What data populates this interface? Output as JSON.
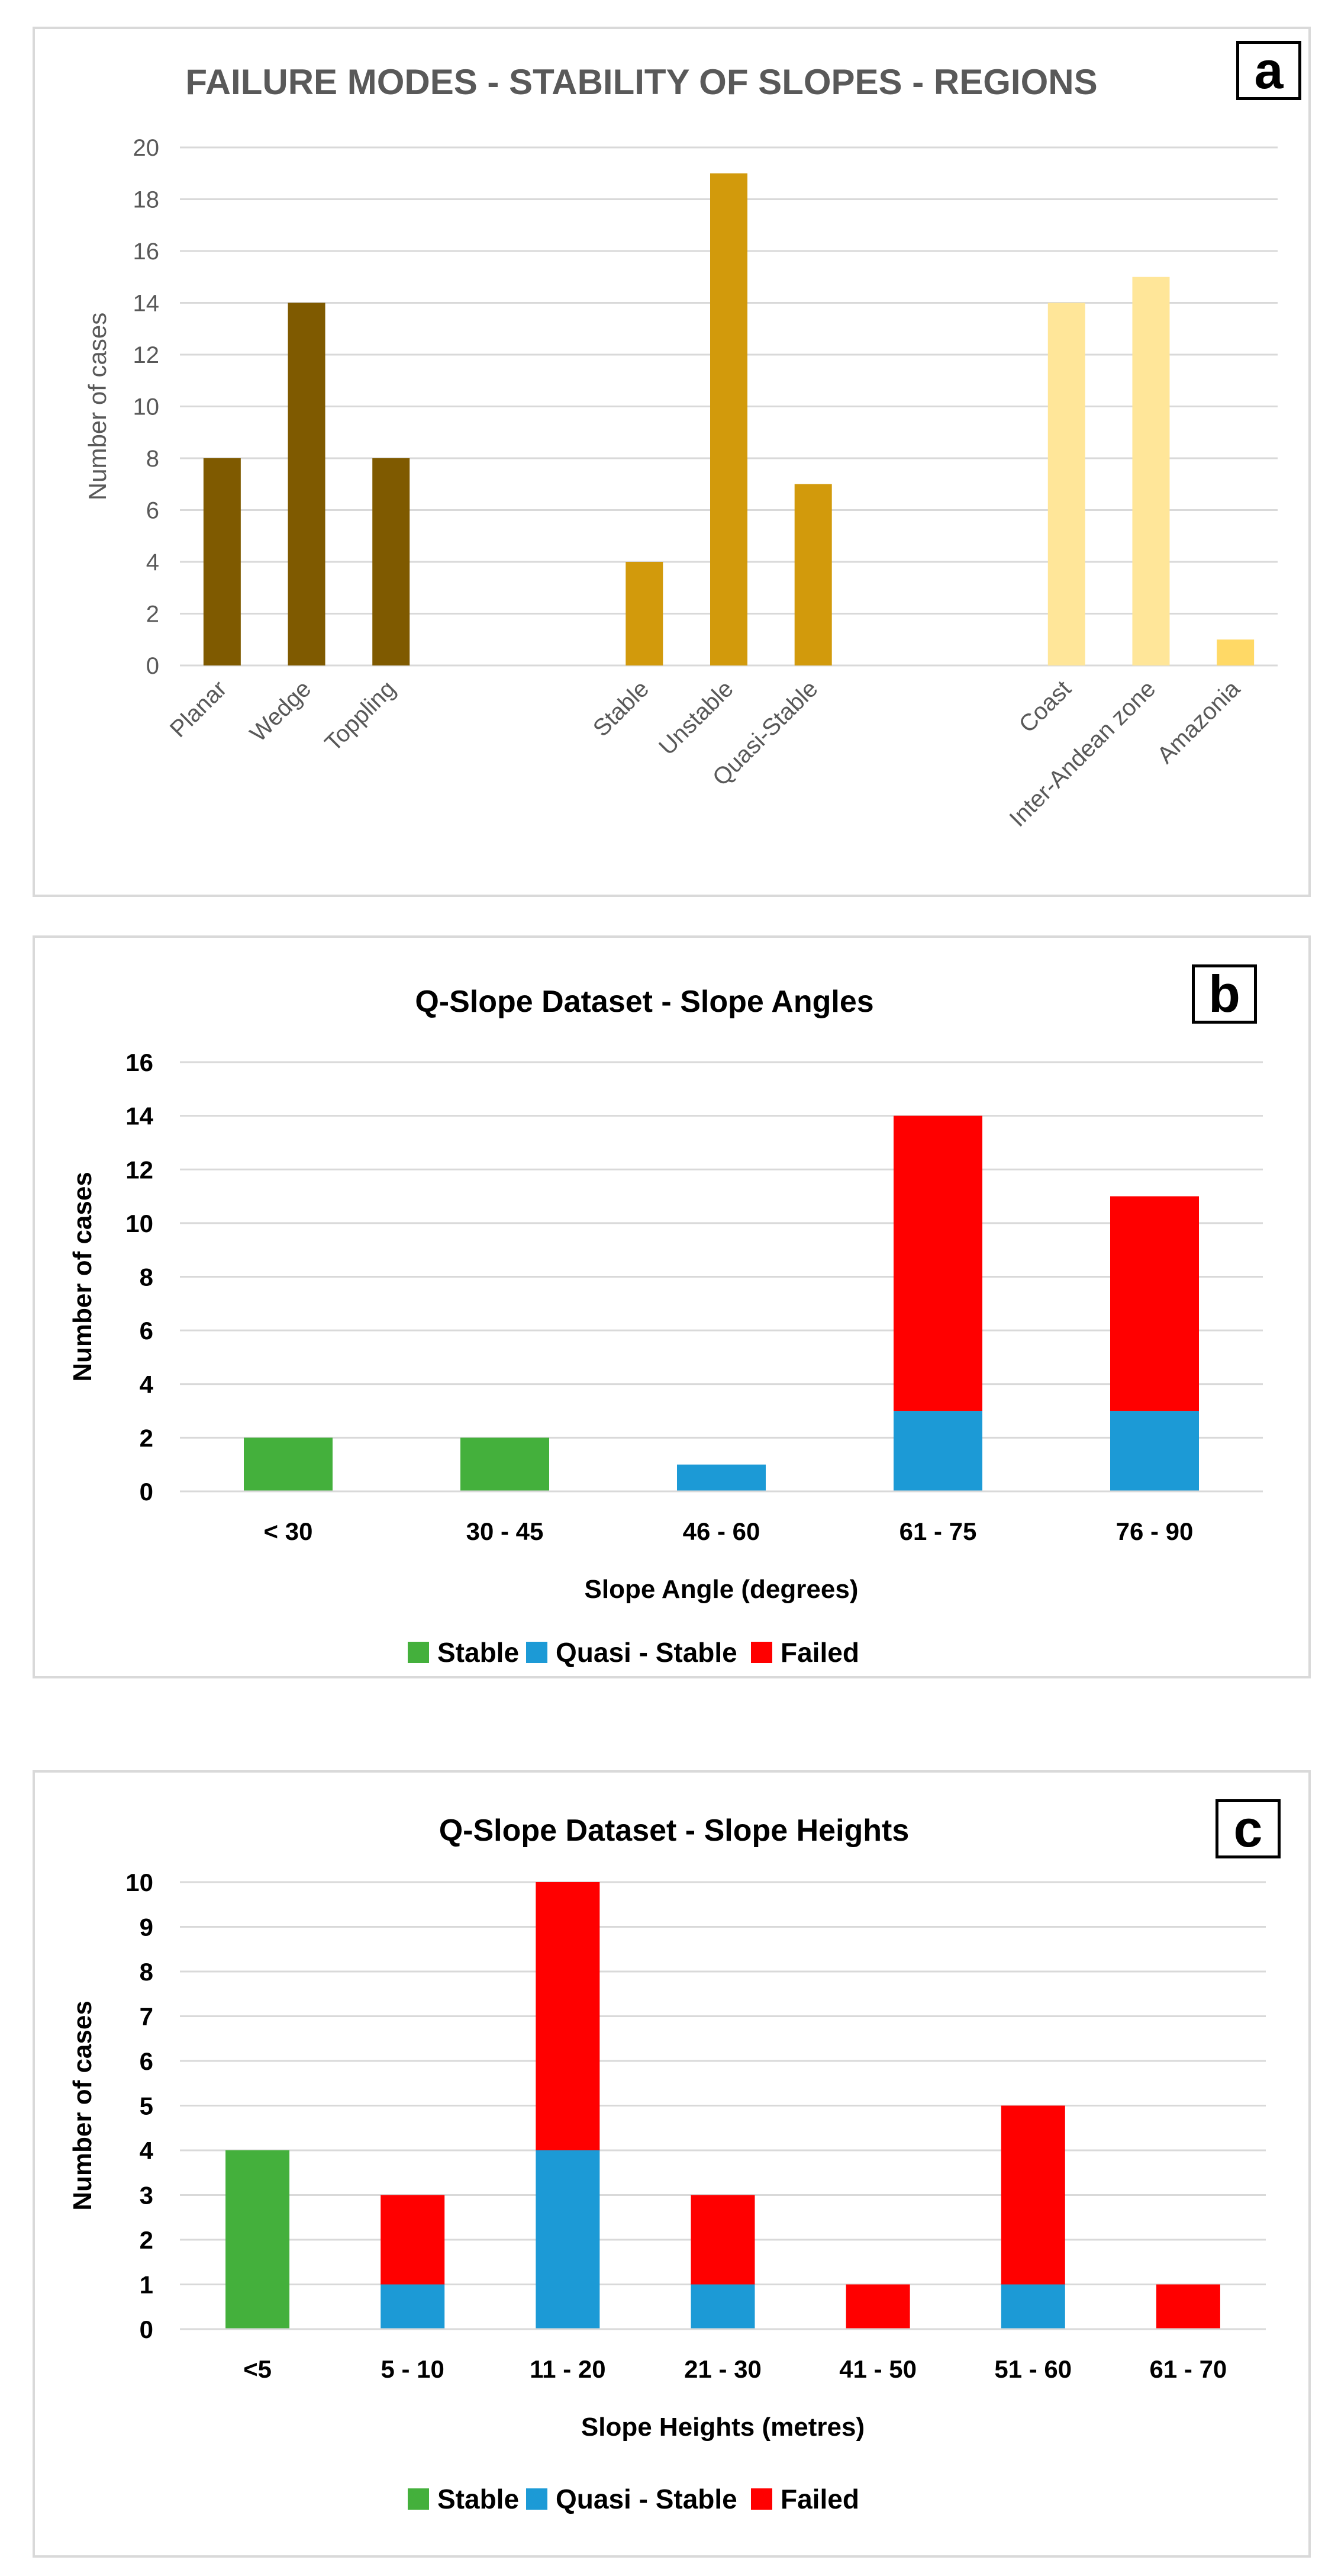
{
  "chart_data": [
    {
      "type": "bar",
      "panel_label": "a",
      "title": "FAILURE MODES - STABILITY OF SLOPES - REGIONS",
      "ylabel": "Number of cases",
      "xlabel": "",
      "ylim": [
        0,
        20
      ],
      "yticks": [
        "0",
        "2",
        "4",
        "6",
        "8",
        "10",
        "12",
        "14",
        "16",
        "18",
        "20"
      ],
      "categories": [
        "Planar",
        "Wedge",
        "Toppling",
        "",
        "",
        "Stable",
        "Unstable",
        "Quasi-Stable",
        "",
        "",
        "Coast",
        "Inter-Andean zone",
        "Amazonia"
      ],
      "values": [
        8,
        14,
        8,
        null,
        null,
        4,
        19,
        7,
        null,
        null,
        14,
        15,
        1
      ],
      "colors": [
        "#7f5a00",
        "#7f5a00",
        "#7f5a00",
        "",
        "",
        "#d29a0c",
        "#d29a0c",
        "#d29a0c",
        "",
        "",
        "#ffe699",
        "#ffe699",
        "#ffd966"
      ],
      "grid": true
    },
    {
      "type": "bar",
      "stacked": true,
      "panel_label": "b",
      "title": "Q-Slope Dataset - Slope Angles",
      "xlabel": "Slope Angle (degrees)",
      "ylabel": "Number of cases",
      "ylim": [
        0,
        16
      ],
      "yticks": [
        "0",
        "2",
        "4",
        "6",
        "8",
        "10",
        "12",
        "14",
        "16"
      ],
      "categories": [
        "< 30",
        "30 - 45",
        "46 - 60",
        "61 - 75",
        "76 - 90"
      ],
      "series": [
        {
          "name": "Stable",
          "color": "#44b03c",
          "values": [
            2,
            2,
            0,
            0,
            0
          ]
        },
        {
          "name": "Quasi - Stable",
          "color": "#1c9ad6",
          "values": [
            0,
            0,
            1,
            3,
            3
          ]
        },
        {
          "name": "Failed",
          "color": "#ff0000",
          "values": [
            0,
            0,
            0,
            11,
            8
          ]
        }
      ],
      "legend": "bottom",
      "grid": true
    },
    {
      "type": "bar",
      "stacked": true,
      "panel_label": "c",
      "title": "Q-Slope Dataset - Slope Heights",
      "xlabel": "Slope Heights (metres)",
      "ylabel": "Number of cases",
      "ylim": [
        0,
        10
      ],
      "yticks": [
        "0",
        "1",
        "2",
        "3",
        "4",
        "5",
        "6",
        "7",
        "8",
        "9",
        "10"
      ],
      "categories": [
        "<5",
        "5 - 10",
        "11 - 20",
        "21 - 30",
        "41 - 50",
        "51 - 60",
        "61 - 70"
      ],
      "series": [
        {
          "name": "Stable",
          "color": "#44b03c",
          "values": [
            4,
            0,
            0,
            0,
            0,
            0,
            0
          ]
        },
        {
          "name": "Quasi - Stable",
          "color": "#1c9ad6",
          "values": [
            0,
            1,
            4,
            1,
            0,
            1,
            0
          ]
        },
        {
          "name": "Failed",
          "color": "#ff0000",
          "values": [
            0,
            2,
            6,
            2,
            1,
            4,
            1
          ]
        }
      ],
      "legend": "bottom",
      "grid": true
    }
  ]
}
